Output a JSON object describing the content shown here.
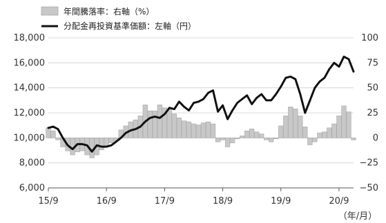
{
  "chart_data": {
    "type": "bar+line",
    "legend": {
      "bar_label": "年間騰落率：右軸（%）",
      "line_label": "分配金再投資基準価額：左軸（円）"
    },
    "x_tick_labels": [
      "15/9",
      "16/9",
      "17/9",
      "18/9",
      "19/9",
      "20/9"
    ],
    "x_unit_label": "（年/月）",
    "left_axis": {
      "ticks": [
        "18,000",
        "16,000",
        "14,000",
        "12,000",
        "10,000",
        "8,000",
        "6,000"
      ],
      "values": [
        18000,
        16000,
        14000,
        12000,
        10000,
        8000,
        6000
      ],
      "ylim": [
        6000,
        18000
      ]
    },
    "right_axis": {
      "ticks": [
        "100",
        "75",
        "50",
        "25",
        "0",
        "−25",
        "−50"
      ],
      "values": [
        100,
        75,
        50,
        25,
        0,
        -25,
        -50
      ],
      "ylim": [
        -50,
        100
      ]
    },
    "grid": true,
    "colors": {
      "bar": "#c8c8c8",
      "bar_edge": "#a8a8a8",
      "line": "#111111",
      "grid": "#cfcfcf"
    },
    "series": [
      {
        "name": "年間騰落率：右軸（%）",
        "axis": "right",
        "kind": "bar",
        "x": [
          0,
          1,
          2,
          3,
          4,
          5,
          6,
          7,
          8,
          9,
          10,
          11,
          12,
          13,
          14,
          15,
          16,
          17,
          18,
          19,
          20,
          21,
          22,
          23,
          24,
          25,
          26,
          27,
          28,
          29,
          30,
          31,
          32,
          33,
          34,
          35,
          36,
          37,
          38,
          39,
          40,
          41,
          42,
          43,
          44,
          45,
          46,
          47,
          48,
          49,
          50,
          51,
          52,
          53,
          54,
          55,
          56,
          57,
          58,
          59,
          60,
          61,
          62,
          63
        ],
        "values": [
          10,
          7,
          -2,
          -9,
          -13,
          -17,
          -14,
          -13,
          -17,
          -20,
          -17,
          -12,
          -9,
          -5,
          -3,
          8,
          12,
          16,
          18,
          22,
          33,
          27,
          27,
          33,
          30,
          28,
          24,
          20,
          17,
          16,
          14,
          13,
          15,
          16,
          14,
          -4,
          -2,
          -9,
          -5,
          -1,
          2,
          7,
          9,
          6,
          4,
          -2,
          -4,
          -1,
          12,
          22,
          31,
          29,
          22,
          11,
          -7,
          -4,
          5,
          6,
          10,
          14,
          22,
          32,
          26,
          -2
        ],
        "note": "values estimated monthly from 15/9 to 20/12 approx; bars read against right axis"
      },
      {
        "name": "分配金再投資基準価額：左軸（円）",
        "axis": "left",
        "kind": "line",
        "x": [
          0,
          1,
          2,
          3,
          4,
          5,
          6,
          7,
          8,
          9,
          10,
          11,
          12,
          13,
          14,
          15,
          16,
          17,
          18,
          19,
          20,
          21,
          22,
          23,
          24,
          25,
          26,
          27,
          28,
          29,
          30,
          31,
          32,
          33,
          34,
          35,
          36,
          37,
          38,
          39,
          40,
          41,
          42,
          43,
          44,
          45,
          46,
          47,
          48,
          49,
          50,
          51,
          52,
          53,
          54,
          55,
          56,
          57,
          58,
          59,
          60,
          61,
          62,
          63
        ],
        "values": [
          10800,
          10900,
          10700,
          10000,
          9400,
          9100,
          9500,
          9500,
          9400,
          8900,
          9400,
          9300,
          9300,
          9400,
          9700,
          10000,
          10400,
          10600,
          10700,
          10900,
          11300,
          11600,
          11700,
          11600,
          11900,
          12400,
          12300,
          12900,
          12500,
          12200,
          12800,
          12900,
          13100,
          13600,
          13800,
          12100,
          12600,
          11500,
          12200,
          12800,
          13100,
          13400,
          12700,
          13200,
          13500,
          13000,
          13000,
          13500,
          14100,
          14800,
          14900,
          14700,
          13500,
          12000,
          13000,
          14000,
          14500,
          14800,
          15500,
          16000,
          15700,
          16500,
          16300,
          15300
        ],
        "note": "monthly NAV estimate (yen)"
      }
    ]
  }
}
